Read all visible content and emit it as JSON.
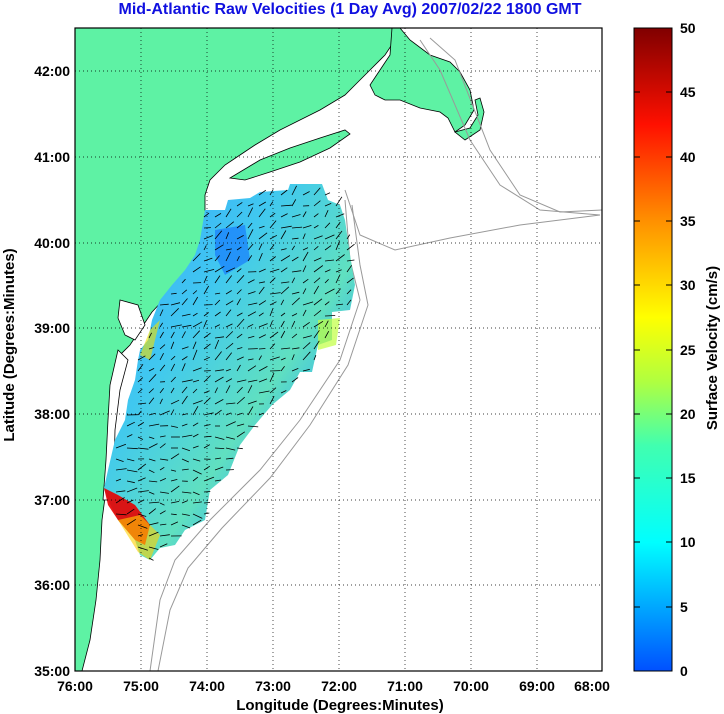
{
  "title": "Mid-Atlantic Raw Velocities (1 Day Avg) 2007/02/22 1800 GMT",
  "xlabel": "Longitude (Degrees:Minutes)",
  "ylabel": "Latitude (Degrees:Minutes)",
  "colorbar": {
    "label": "Surface Velocity (cm/s)",
    "range": [
      0,
      50
    ],
    "ticks": [
      "0",
      "5",
      "10",
      "15",
      "20",
      "25",
      "30",
      "35",
      "40",
      "45",
      "50"
    ]
  },
  "map": {
    "lon_range": [
      -76,
      -68
    ],
    "lat_range": [
      35,
      42.5
    ],
    "x_ticks": [
      "76:00",
      "75:00",
      "74:00",
      "73:00",
      "72:00",
      "71:00",
      "70:00",
      "69:00",
      "68:00"
    ],
    "y_ticks": [
      "35:00",
      "36:00",
      "37:00",
      "38:00",
      "39:00",
      "40:00",
      "41:00",
      "42:00"
    ],
    "grid": "dotted",
    "land_color": "#5ef2a4",
    "bathymetry_color": "#999999"
  }
}
